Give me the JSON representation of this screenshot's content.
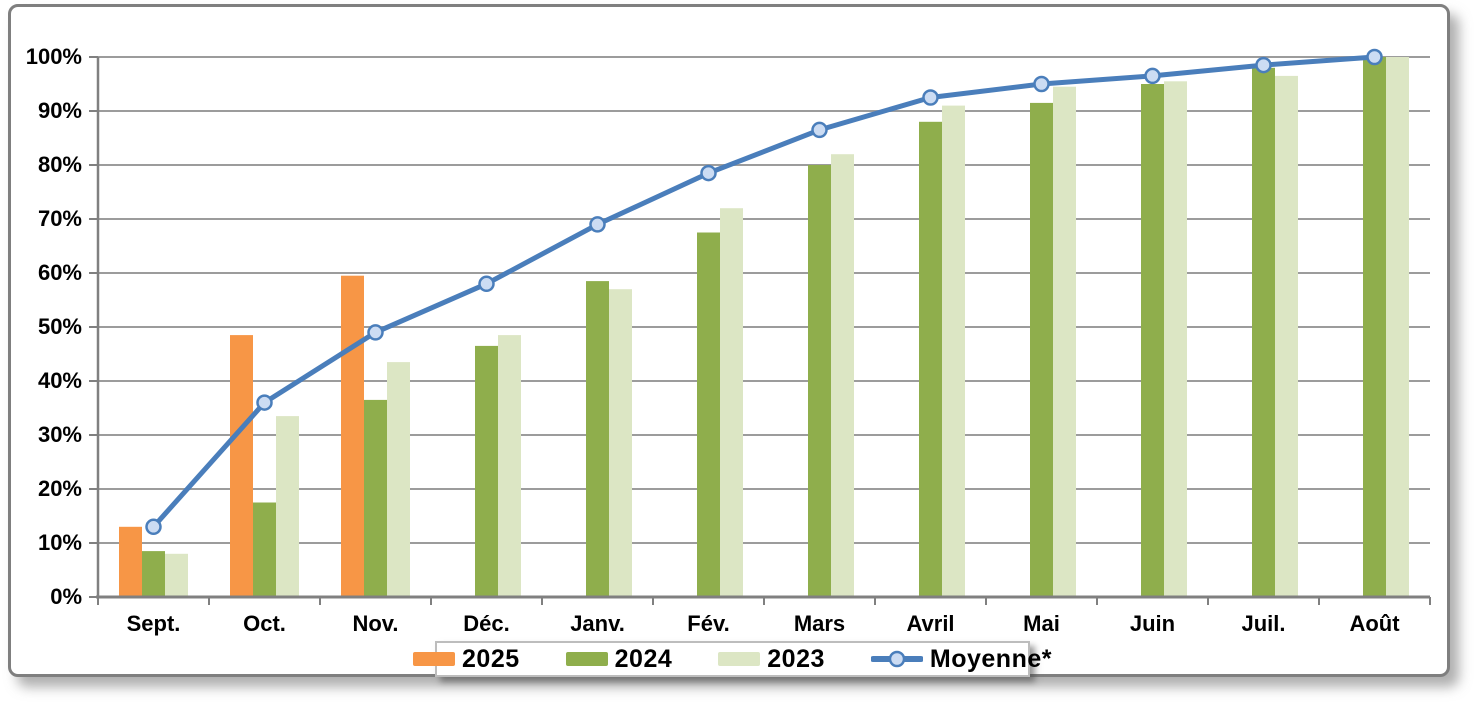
{
  "chart_data": {
    "type": "bar+line",
    "title": "",
    "xlabel": "",
    "ylabel": "",
    "categories": [
      "Sept.",
      "Oct.",
      "Nov.",
      "Déc.",
      "Janv.",
      "Fév.",
      "Mars",
      "Avril",
      "Mai",
      "Juin",
      "Juil.",
      "Août"
    ],
    "series": [
      {
        "name": "2025",
        "type": "bar",
        "color": "#F79646",
        "values": [
          13,
          48.5,
          59.5,
          null,
          null,
          null,
          null,
          null,
          null,
          null,
          null,
          null
        ]
      },
      {
        "name": "2024",
        "type": "bar",
        "color": "#8FAE4C",
        "values": [
          8.5,
          17.5,
          36.5,
          46.5,
          58.5,
          67.5,
          80,
          88,
          91.5,
          95,
          98,
          100
        ]
      },
      {
        "name": "2023",
        "type": "bar",
        "color": "#DCE6C4",
        "values": [
          8,
          33.5,
          43.5,
          48.5,
          57,
          72,
          82,
          91,
          94.5,
          95.5,
          96.5,
          100
        ]
      },
      {
        "name": "Moyenne*",
        "type": "line",
        "color": "#4A7EBB",
        "marker_fill": "#CCDCF3",
        "values": [
          13,
          36,
          49,
          58,
          69,
          78.5,
          86.5,
          92.5,
          95,
          96.5,
          98.5,
          100
        ]
      }
    ],
    "ylim": [
      0,
      100
    ],
    "ytick_step": 10,
    "ytick_suffix": "%",
    "yticks": [
      "0%",
      "10%",
      "20%",
      "30%",
      "40%",
      "50%",
      "60%",
      "70%",
      "80%",
      "90%",
      "100%"
    ],
    "grid": true,
    "legend_position": "bottom-center"
  },
  "style_colors": {
    "gridline": "#9C9C9C",
    "axis": "#808080",
    "tick_text": "#000000",
    "frame_border": "#7F7F7F"
  }
}
